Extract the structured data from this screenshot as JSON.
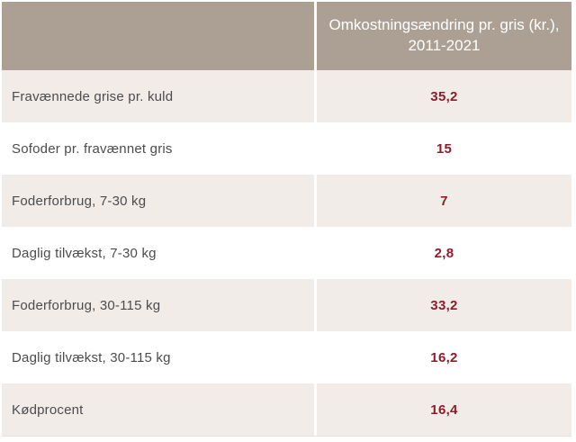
{
  "colors": {
    "header_bg": "#aca094",
    "row_alt_bg": "#f1ece8",
    "row_bg": "#ffffff",
    "header_text": "#ffffff",
    "label_text": "#4c4c4e",
    "value_text": "#8e1c2c",
    "column_divider": "#ffffff"
  },
  "table": {
    "header": {
      "title_line1": "Omkostningsændring pr. gris (kr.),",
      "title_line2": "2011-2021"
    },
    "rows": [
      {
        "label": "Fravænnede grise pr. kuld",
        "value": "35,2"
      },
      {
        "label": "Sofoder pr. fravænnet gris",
        "value": "15"
      },
      {
        "label": "Foderforbrug, 7-30 kg",
        "value": "7"
      },
      {
        "label": "Daglig tilvækst, 7-30 kg",
        "value": "2,8"
      },
      {
        "label": "Foderforbrug, 30-115 kg",
        "value": "33,2"
      },
      {
        "label": "Daglig tilvækst, 30-115 kg",
        "value": "16,2"
      },
      {
        "label": "Kødprocent",
        "value": "16,4"
      }
    ]
  },
  "chart_data": {
    "type": "table",
    "title": "Omkostningsændring pr. gris (kr.), 2011-2021",
    "columns": [
      "",
      "Omkostningsændring pr. gris (kr.), 2011-2021"
    ],
    "categories": [
      "Fravænnede grise pr. kuld",
      "Sofoder pr. fravænnet gris",
      "Foderforbrug, 7-30 kg",
      "Daglig tilvækst, 7-30 kg",
      "Foderforbrug, 30-115 kg",
      "Daglig tilvækst, 30-115 kg",
      "Kødprocent"
    ],
    "values": [
      35.2,
      15,
      7,
      2.8,
      33.2,
      16.2,
      16.4
    ],
    "value_display": [
      "35,2",
      "15",
      "7",
      "2,8",
      "33,2",
      "16,2",
      "16,4"
    ],
    "unit": "kr. pr. gris",
    "layout_hints": {
      "alternating_rows": true,
      "first_body_row_shaded": true,
      "value_column_centered": true
    }
  }
}
